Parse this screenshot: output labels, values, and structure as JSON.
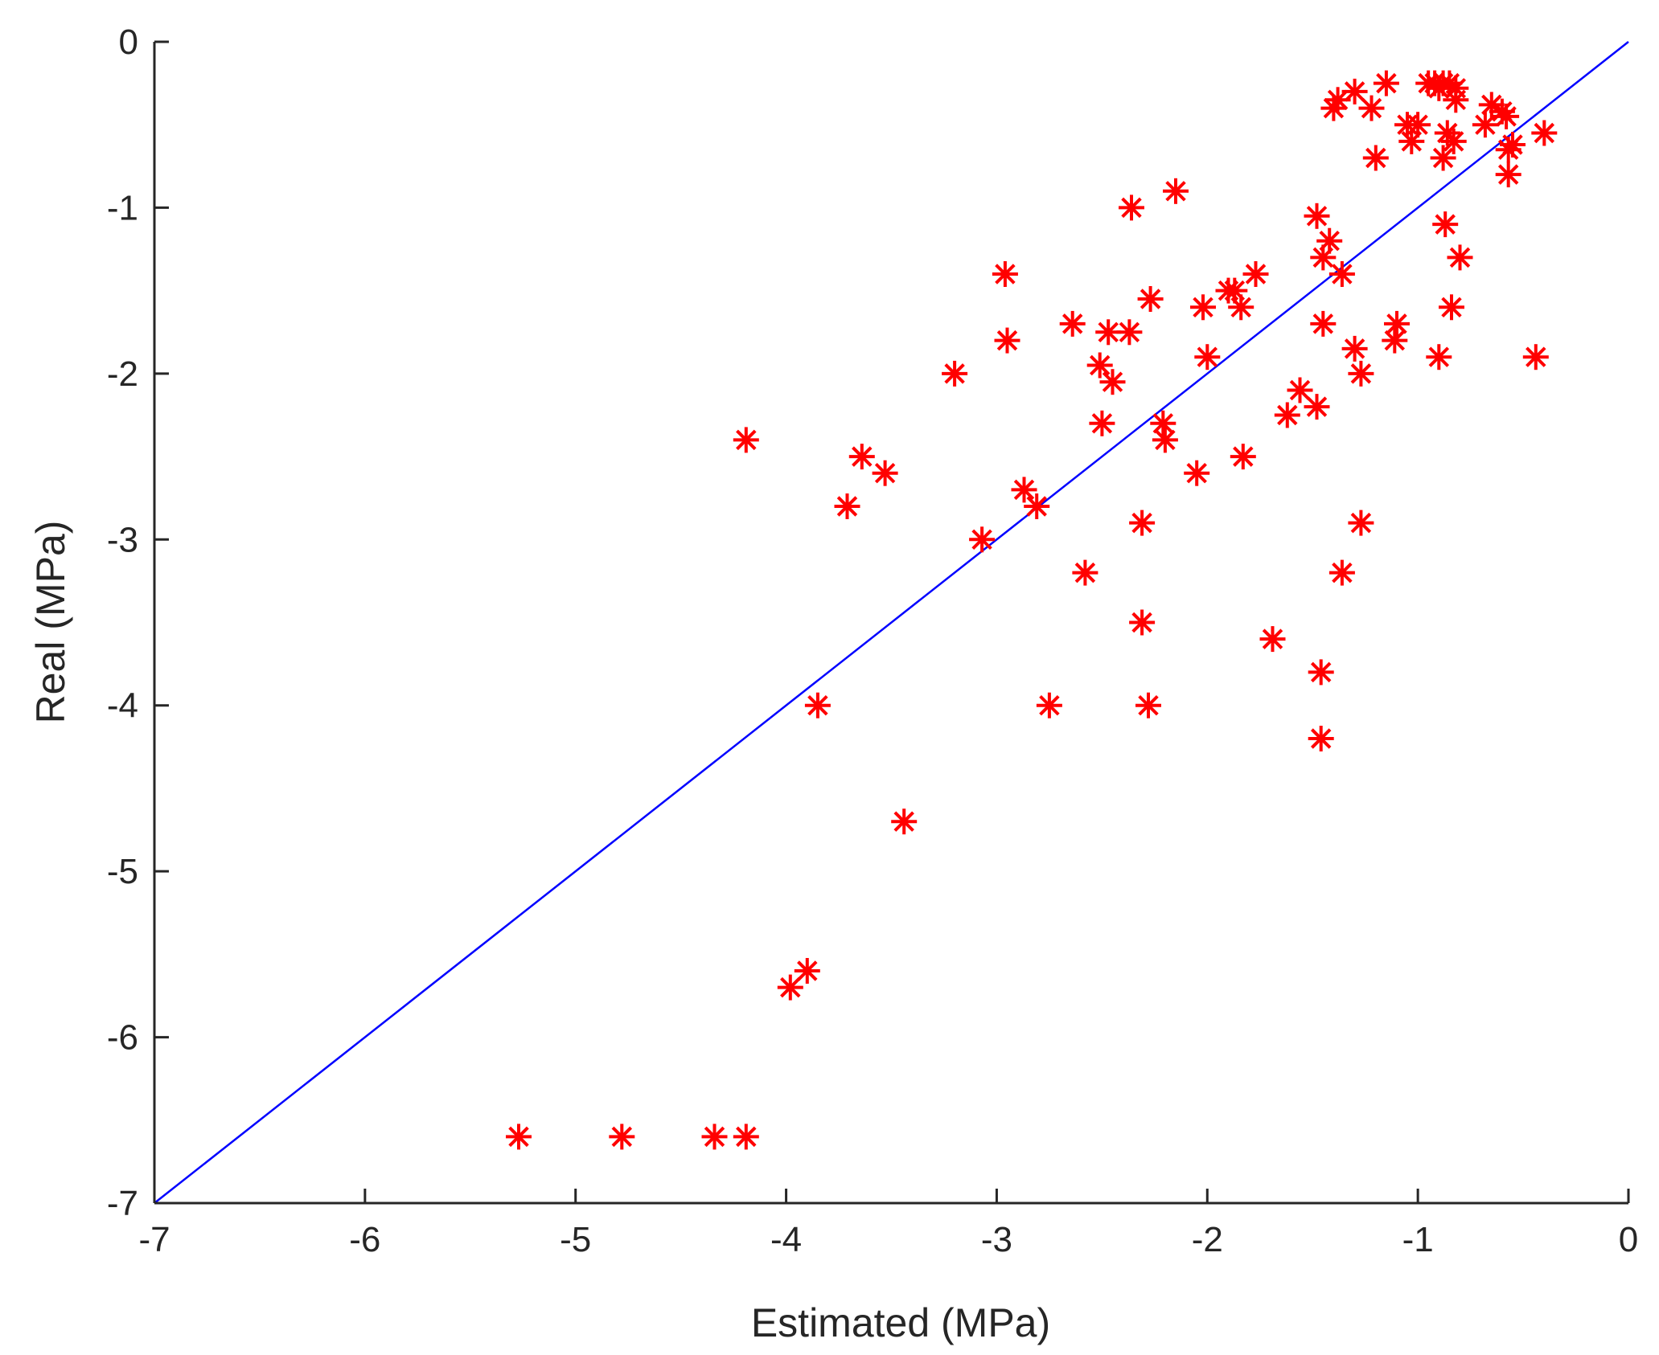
{
  "chart_data": {
    "type": "scatter",
    "xlabel": "Estimated (MPa)",
    "ylabel": "Real (MPa)",
    "xlim": [
      -7,
      0
    ],
    "ylim": [
      -7,
      0
    ],
    "xticks": [
      -7,
      -6,
      -5,
      -4,
      -3,
      -2,
      -1,
      0
    ],
    "yticks": [
      -7,
      -6,
      -5,
      -4,
      -3,
      -2,
      -1,
      0
    ],
    "grid": false,
    "marker": "asterisk",
    "marker_color": "#ff0000",
    "reference_line": {
      "x": [
        -7,
        0
      ],
      "y": [
        -7,
        0
      ],
      "color": "#0000ff"
    },
    "series": [
      {
        "x": [
          -0.92,
          -0.88,
          -0.85,
          -0.82,
          -0.95,
          -0.9,
          -1.15,
          -1.3,
          -1.22,
          -1.4,
          -1.38,
          -1.05,
          -1.0,
          -1.03,
          -0.65,
          -0.68,
          -0.6,
          -0.58,
          -0.82,
          -0.83,
          -0.86,
          -0.88,
          -0.55,
          -0.57,
          -0.4,
          -1.2,
          -0.57,
          -2.15,
          -2.36,
          -1.48,
          -1.42,
          -1.45,
          -1.36,
          -0.87,
          -0.8,
          -0.84,
          -0.44,
          -0.9,
          -1.1,
          -1.11,
          -1.3,
          -1.27,
          -2.96,
          -2.95,
          -2.64,
          -2.47,
          -2.37,
          -2.27,
          -2.02,
          -2.0,
          -1.9,
          -1.87,
          -1.84,
          -1.77,
          -1.45,
          -1.56,
          -1.48,
          -1.62,
          -3.2,
          -2.51,
          -2.45,
          -2.5,
          -2.21,
          -2.2,
          -2.05,
          -1.83,
          -4.19,
          -3.64,
          -3.53,
          -3.71,
          -2.87,
          -2.81,
          -3.07,
          -2.58,
          -2.31,
          -1.27,
          -1.36,
          -2.31,
          -1.69,
          -1.46,
          -1.46,
          -3.85,
          -2.75,
          -2.28,
          -3.44,
          -3.9,
          -3.98,
          -5.27,
          -4.78,
          -4.34,
          -4.19
        ],
        "y": [
          -0.25,
          -0.25,
          -0.25,
          -0.28,
          -0.25,
          -0.28,
          -0.25,
          -0.3,
          -0.4,
          -0.4,
          -0.35,
          -0.5,
          -0.5,
          -0.6,
          -0.38,
          -0.5,
          -0.42,
          -0.45,
          -0.35,
          -0.6,
          -0.55,
          -0.7,
          -0.62,
          -0.8,
          -0.55,
          -0.7,
          -0.65,
          -0.9,
          -1.0,
          -1.05,
          -1.2,
          -1.3,
          -1.4,
          -1.1,
          -1.3,
          -1.6,
          -1.9,
          -1.9,
          -1.7,
          -1.8,
          -1.85,
          -2.0,
          -1.4,
          -1.8,
          -1.7,
          -1.75,
          -1.75,
          -1.55,
          -1.6,
          -1.9,
          -1.5,
          -1.5,
          -1.6,
          -1.4,
          -1.7,
          -2.1,
          -2.2,
          -2.25,
          -2.0,
          -1.95,
          -2.05,
          -2.3,
          -2.3,
          -2.4,
          -2.6,
          -2.5,
          -2.4,
          -2.5,
          -2.6,
          -2.8,
          -2.7,
          -2.8,
          -3.0,
          -3.2,
          -2.9,
          -2.9,
          -3.2,
          -3.5,
          -3.6,
          -3.8,
          -4.2,
          -4.0,
          -4.0,
          -4.0,
          -4.7,
          -5.6,
          -5.7,
          -6.6,
          -6.6,
          -6.6,
          -6.6
        ]
      }
    ]
  }
}
